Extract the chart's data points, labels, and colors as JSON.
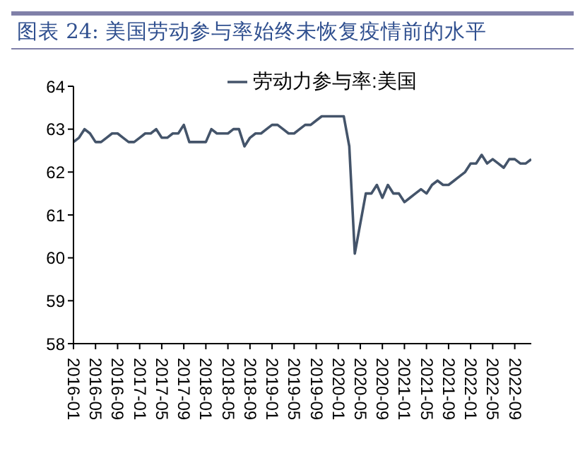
{
  "chart_data": {
    "type": "line",
    "title": "图表 24: 美国劳动参与率始终未恢复疫情前的水平",
    "x": [
      "2016-01",
      "2016-02",
      "2016-03",
      "2016-04",
      "2016-05",
      "2016-06",
      "2016-07",
      "2016-08",
      "2016-09",
      "2016-10",
      "2016-11",
      "2016-12",
      "2017-01",
      "2017-02",
      "2017-03",
      "2017-04",
      "2017-05",
      "2017-06",
      "2017-07",
      "2017-08",
      "2017-09",
      "2017-10",
      "2017-11",
      "2017-12",
      "2018-01",
      "2018-02",
      "2018-03",
      "2018-04",
      "2018-05",
      "2018-06",
      "2018-07",
      "2018-08",
      "2018-09",
      "2018-10",
      "2018-11",
      "2018-12",
      "2019-01",
      "2019-02",
      "2019-03",
      "2019-04",
      "2019-05",
      "2019-06",
      "2019-07",
      "2019-08",
      "2019-09",
      "2019-10",
      "2019-11",
      "2019-12",
      "2020-01",
      "2020-02",
      "2020-03",
      "2020-04",
      "2020-05",
      "2020-06",
      "2020-07",
      "2020-08",
      "2020-09",
      "2020-10",
      "2020-11",
      "2020-12",
      "2021-01",
      "2021-02",
      "2021-03",
      "2021-04",
      "2021-05",
      "2021-06",
      "2021-07",
      "2021-08",
      "2021-09",
      "2021-10",
      "2021-11",
      "2021-12",
      "2022-01",
      "2022-02",
      "2022-03",
      "2022-04",
      "2022-05",
      "2022-06",
      "2022-07",
      "2022-08",
      "2022-09",
      "2022-10",
      "2022-11",
      "2022-12"
    ],
    "series": [
      {
        "name": "劳动力参与率:美国",
        "color": "#44546a",
        "values": [
          62.7,
          62.8,
          63.0,
          62.9,
          62.7,
          62.7,
          62.8,
          62.9,
          62.9,
          62.8,
          62.7,
          62.7,
          62.8,
          62.9,
          62.9,
          63.0,
          62.8,
          62.8,
          62.9,
          62.9,
          63.1,
          62.7,
          62.7,
          62.7,
          62.7,
          63.0,
          62.9,
          62.9,
          62.9,
          63.0,
          63.0,
          62.6,
          62.8,
          62.9,
          62.9,
          63.0,
          63.1,
          63.1,
          63.0,
          62.9,
          62.9,
          63.0,
          63.1,
          63.1,
          63.2,
          63.3,
          63.3,
          63.3,
          63.3,
          63.3,
          62.6,
          60.1,
          60.8,
          61.5,
          61.5,
          61.7,
          61.4,
          61.7,
          61.5,
          61.5,
          61.3,
          61.4,
          61.5,
          61.6,
          61.5,
          61.7,
          61.8,
          61.7,
          61.7,
          61.8,
          61.9,
          62.0,
          62.2,
          62.2,
          62.4,
          62.2,
          62.3,
          62.2,
          62.1,
          62.3,
          62.3,
          62.2,
          62.2,
          62.3
        ]
      }
    ],
    "ylim": [
      58,
      64
    ],
    "yticks": [
      58,
      59,
      60,
      61,
      62,
      63,
      64
    ],
    "xlim": [
      "2016-01",
      "2022-12"
    ],
    "xticks": [
      "2016-01",
      "2016-05",
      "2016-09",
      "2017-01",
      "2017-05",
      "2017-09",
      "2018-01",
      "2018-05",
      "2018-09",
      "2019-01",
      "2019-05",
      "2019-09",
      "2020-01",
      "2020-05",
      "2020-09",
      "2021-01",
      "2021-05",
      "2021-09",
      "2022-01",
      "2022-05",
      "2022-09"
    ],
    "grid": false,
    "legend": "top",
    "marker": "none",
    "line_style": "solid"
  }
}
